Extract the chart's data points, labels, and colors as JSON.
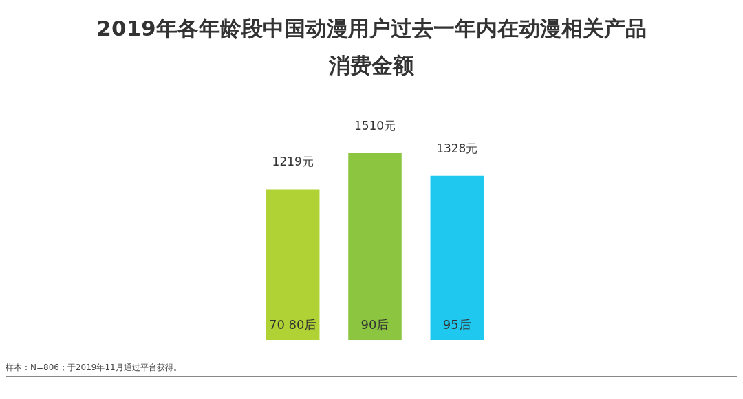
{
  "chart_data": {
    "type": "bar",
    "title": "2019年各年龄段中国动漫用户过去一年内在动漫相关产品消费金额",
    "categories": [
      "70 80后",
      "90后",
      "95后"
    ],
    "values": [
      1219,
      1510,
      1328
    ],
    "colors": [
      "#b1d235",
      "#8cc640",
      "#1fc8ef"
    ],
    "value_labels": [
      "1219元",
      "1510元",
      "1328元"
    ],
    "annotations": [
      "样本：N=806；于2019年11月通过平台获得。"
    ]
  }
}
